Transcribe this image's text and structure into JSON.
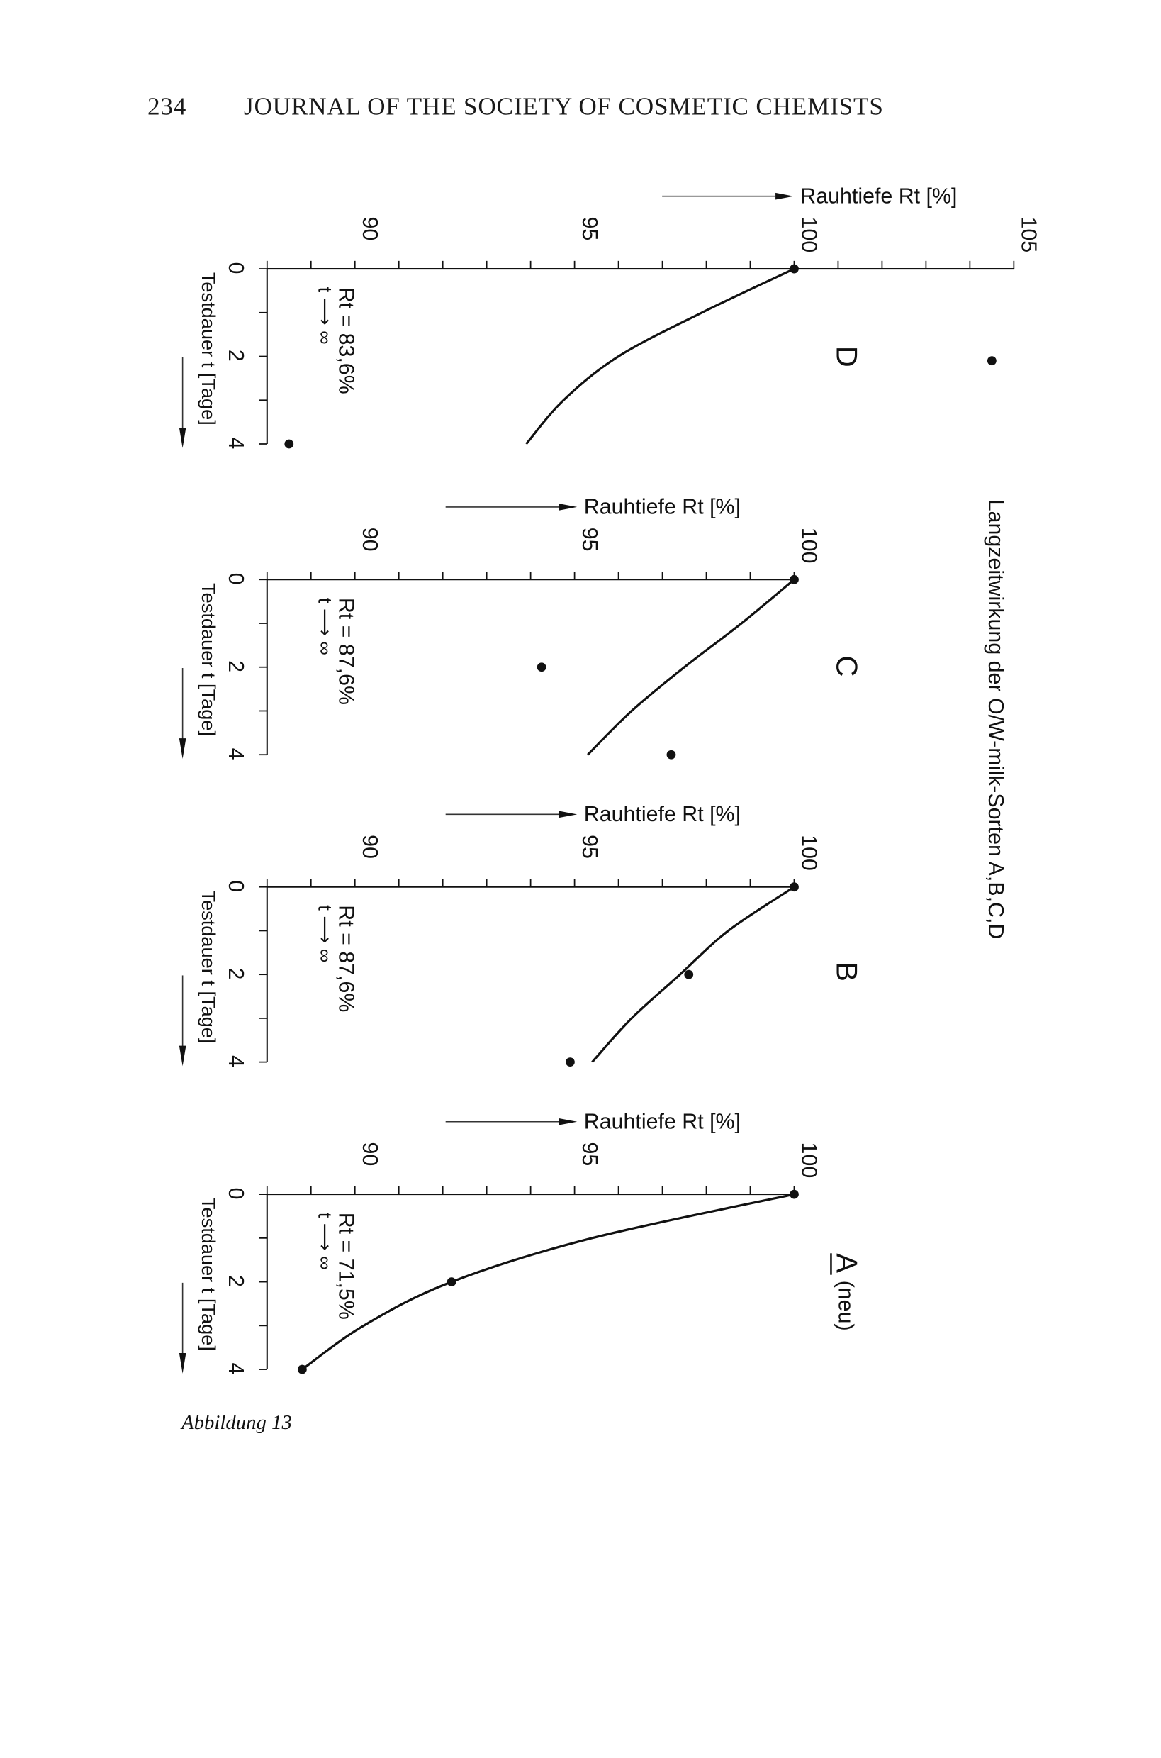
{
  "header": {
    "page_number": "234",
    "journal_title": "JOURNAL OF THE SOCIETY OF COSMETIC CHEMISTS"
  },
  "figure": {
    "title": "Langzeitwirkung der O/W-milk-Sorten A,B,C,D",
    "caption": "Abbildung 13",
    "colors": {
      "ink": "#111111",
      "background": "#ffffff"
    }
  },
  "chart_data": [
    {
      "type": "scatter",
      "panel_label": "D",
      "ylabel": "Rauhtiefe Rt [%]",
      "xlabel": "Testdauer t [Tage]",
      "annotation": {
        "line1": "Rt = 83,6%",
        "line2": "t ⟶ ∞"
      },
      "rt_ticks": [
        "90",
        "95",
        "100",
        "105"
      ],
      "rt_range": [
        88,
        105
      ],
      "t_ticks": [
        "0",
        "2",
        "4"
      ],
      "t_range": [
        0,
        4
      ],
      "points": [
        {
          "t": 0,
          "rt": 100
        },
        {
          "t": 2.1,
          "rt": 104.5
        },
        {
          "t": 4,
          "rt": 88.5
        }
      ],
      "fit_curve": [
        {
          "t": 0,
          "rt": 100
        },
        {
          "t": 1,
          "rt": 97.9
        },
        {
          "t": 2,
          "rt": 96.0
        },
        {
          "t": 3,
          "rt": 94.75
        },
        {
          "t": 4,
          "rt": 93.9
        }
      ]
    },
    {
      "type": "scatter",
      "panel_label": "C",
      "ylabel": "Rauhtiefe Rt [%]",
      "xlabel": "Testdauer t [Tage]",
      "annotation": {
        "line1": "Rt = 87,6%",
        "line2": "t ⟶ ∞"
      },
      "rt_ticks": [
        "90",
        "95",
        "100"
      ],
      "rt_range": [
        88,
        100
      ],
      "t_ticks": [
        "0",
        "2",
        "4"
      ],
      "t_range": [
        0,
        4
      ],
      "points": [
        {
          "t": 0,
          "rt": 100
        },
        {
          "t": 2,
          "rt": 94.25
        },
        {
          "t": 4,
          "rt": 97.2
        }
      ],
      "fit_curve": [
        {
          "t": 0,
          "rt": 100
        },
        {
          "t": 1,
          "rt": 98.8
        },
        {
          "t": 2,
          "rt": 97.5
        },
        {
          "t": 3,
          "rt": 96.3
        },
        {
          "t": 4,
          "rt": 95.3
        }
      ]
    },
    {
      "type": "scatter",
      "panel_label": "B",
      "ylabel": "Rauhtiefe Rt [%]",
      "xlabel": "Testdauer t [Tage]",
      "annotation": {
        "line1": "Rt = 87,6%",
        "line2": "t ⟶ ∞"
      },
      "rt_ticks": [
        "90",
        "95",
        "100"
      ],
      "rt_range": [
        88,
        100
      ],
      "t_ticks": [
        "0",
        "2",
        "4"
      ],
      "t_range": [
        0,
        4
      ],
      "points": [
        {
          "t": 0,
          "rt": 100
        },
        {
          "t": 2,
          "rt": 97.6
        },
        {
          "t": 4,
          "rt": 94.9
        }
      ],
      "fit_curve": [
        {
          "t": 0,
          "rt": 100
        },
        {
          "t": 1,
          "rt": 98.5
        },
        {
          "t": 2,
          "rt": 97.4
        },
        {
          "t": 3,
          "rt": 96.3
        },
        {
          "t": 4,
          "rt": 95.4
        }
      ]
    },
    {
      "type": "scatter",
      "panel_label": "A",
      "panel_label_suffix": "(neu)",
      "ylabel": "Rauhtiefe Rt [%]",
      "xlabel": "Testdauer t [Tage]",
      "annotation": {
        "line1": "Rt = 71,5%",
        "line2": "t ⟶ ∞"
      },
      "rt_ticks": [
        "90",
        "95",
        "100"
      ],
      "rt_range": [
        88,
        100
      ],
      "t_ticks": [
        "0",
        "2",
        "4"
      ],
      "t_range": [
        0,
        4
      ],
      "points": [
        {
          "t": 0,
          "rt": 100
        },
        {
          "t": 2,
          "rt": 92.2
        },
        {
          "t": 4,
          "rt": 88.8
        }
      ],
      "fit_curve": [
        {
          "t": 0,
          "rt": 100
        },
        {
          "t": 1,
          "rt": 95.4
        },
        {
          "t": 2,
          "rt": 92.2
        },
        {
          "t": 3,
          "rt": 90.2
        },
        {
          "t": 4,
          "rt": 88.8
        }
      ]
    }
  ]
}
